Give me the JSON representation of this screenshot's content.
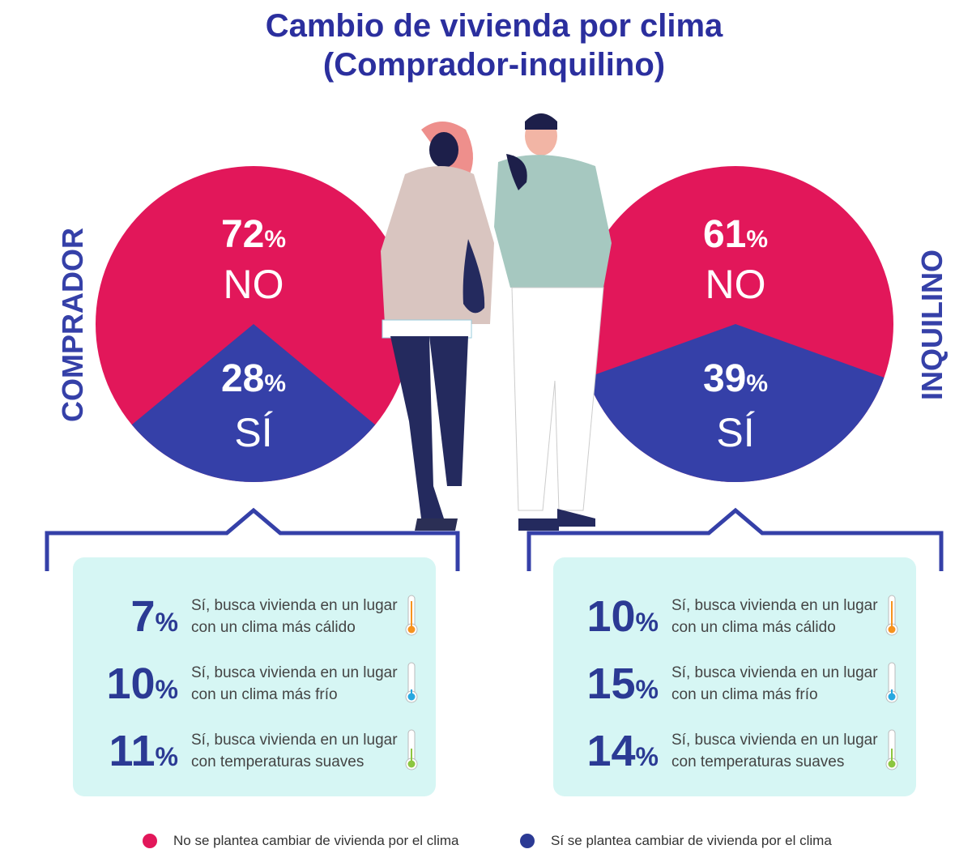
{
  "title_line1": "Cambio de vivienda por clima",
  "title_line2": "(Comprador-inquilino)",
  "colors": {
    "no": "#e2175a",
    "si": "#3540a8",
    "box": "#d6f6f4",
    "warm": "#f7931e",
    "cold": "#29a8e0",
    "mild": "#8cc63f"
  },
  "chart_data": [
    {
      "type": "pie",
      "name": "COMPRADOR",
      "slices": [
        {
          "label": "NO",
          "value": 72
        },
        {
          "label": "SÍ",
          "value": 28
        }
      ]
    },
    {
      "type": "pie",
      "name": "INQUILINO",
      "slices": [
        {
          "label": "NO",
          "value": 61
        },
        {
          "label": "SÍ",
          "value": 39
        }
      ]
    }
  ],
  "pies": [
    {
      "side_label": "COMPRADOR",
      "no_value": "72",
      "no_label": "NO",
      "si_value": "28",
      "si_label": "SÍ",
      "pct": "%"
    },
    {
      "side_label": "INQUILINO",
      "no_value": "61",
      "no_label": "NO",
      "si_value": "39",
      "si_label": "SÍ",
      "pct": "%"
    }
  ],
  "details": [
    {
      "rows": [
        {
          "value": "7",
          "pct": "%",
          "line1": "Sí, busca vivienda en un lugar",
          "line2": "con un clima más cálido",
          "thermo": "warm"
        },
        {
          "value": "10",
          "pct": "%",
          "line1": "Sí, busca vivienda en un lugar",
          "line2": "con un clima más frío",
          "thermo": "cold"
        },
        {
          "value": "11",
          "pct": "%",
          "line1": "Sí, busca vivienda en un lugar",
          "line2": "con temperaturas suaves",
          "thermo": "mild"
        }
      ]
    },
    {
      "rows": [
        {
          "value": "10",
          "pct": "%",
          "line1": "Sí, busca vivienda en un lugar",
          "line2": "con un clima más cálido",
          "thermo": "warm"
        },
        {
          "value": "15",
          "pct": "%",
          "line1": "Sí, busca vivienda en un lugar",
          "line2": "con un clima más frío",
          "thermo": "cold"
        },
        {
          "value": "14",
          "pct": "%",
          "line1": "Sí, busca vivienda en un lugar",
          "line2": "con temperaturas suaves",
          "thermo": "mild"
        }
      ]
    }
  ],
  "legend": [
    {
      "label": "No se plantea cambiar de vivienda por el clima",
      "color": "#e2175a"
    },
    {
      "label": "Sí se plantea cambiar de vivienda por el clima",
      "color": "#2b3a94"
    }
  ]
}
